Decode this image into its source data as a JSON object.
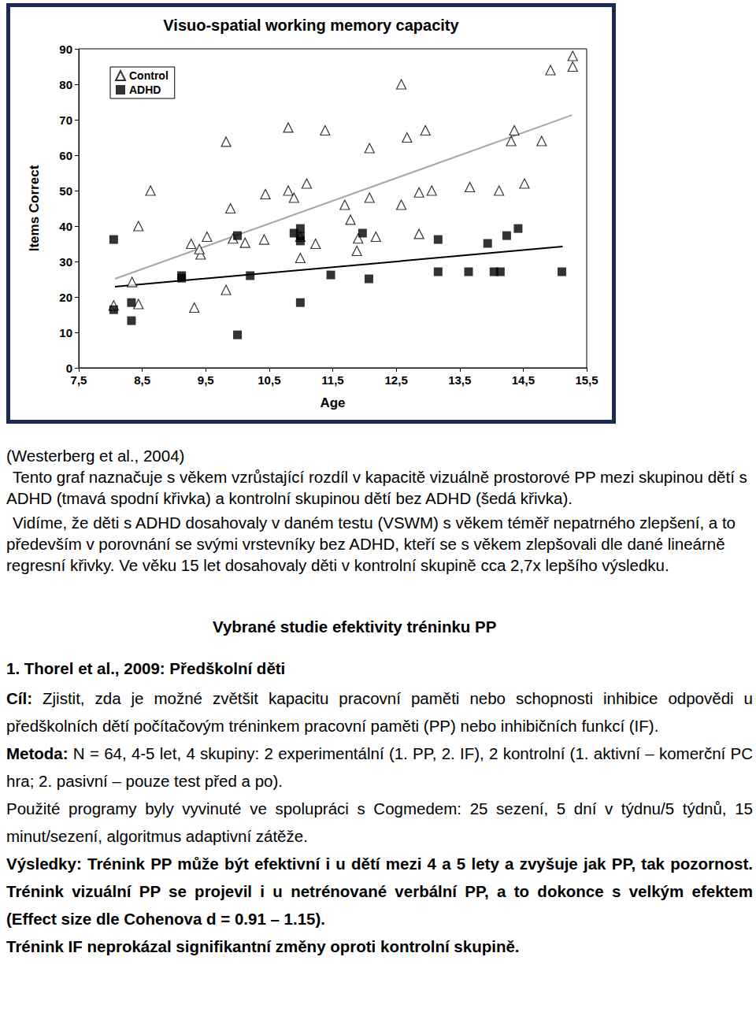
{
  "chart_data": {
    "type": "scatter",
    "title": "Visuo-spatial working memory capacity",
    "x_label": "Age",
    "y_label": "Items Correct",
    "xlim": [
      7.5,
      15.5
    ],
    "xticks": [
      {
        "value": 7.5,
        "label": "7,5"
      },
      {
        "value": 8.5,
        "label": "8,5"
      },
      {
        "value": 9.5,
        "label": "9,5"
      },
      {
        "value": 10.5,
        "label": "10,5"
      },
      {
        "value": 11.5,
        "label": "11,5"
      },
      {
        "value": 12.5,
        "label": "12,5"
      },
      {
        "value": 13.5,
        "label": "13,5"
      },
      {
        "value": 14.5,
        "label": "14,5"
      },
      {
        "value": 15.5,
        "label": "15,5"
      }
    ],
    "ylim": [
      0,
      90
    ],
    "yticks": [
      0,
      10,
      20,
      30,
      40,
      50,
      60,
      70,
      80,
      90
    ],
    "grid": false,
    "legend": "upper left",
    "series": [
      {
        "name": "Control",
        "color": "#000000",
        "marker": "hollow triangle",
        "x": [
          8.05,
          8.34,
          8.44,
          8.44,
          8.63,
          9.27,
          9.42,
          9.4,
          9.52,
          9.32,
          9.82,
          9.82,
          9.89,
          9.93,
          10.12,
          10.42,
          10.44,
          10.8,
          10.8,
          10.89,
          10.99,
          11.09,
          10.99,
          11.23,
          11.38,
          11.69,
          11.78,
          11.88,
          11.9,
          12.08,
          12.08,
          12.18,
          12.58,
          12.58,
          12.67,
          12.86,
          12.86,
          12.96,
          13.06,
          13.66,
          14.12,
          14.31,
          14.36,
          14.52,
          14.79,
          14.93,
          15.28,
          15.28
        ],
        "values": [
          17.6,
          24.2,
          40,
          18,
          50,
          35,
          32,
          33.5,
          37,
          17,
          63.8,
          22,
          45,
          36.5,
          35.3,
          36.2,
          49,
          67.8,
          50,
          48,
          31,
          52,
          37,
          35,
          67,
          46,
          41.8,
          33,
          36.5,
          62,
          48,
          37,
          80,
          46,
          65,
          37.8,
          49.5,
          67,
          50,
          51,
          50,
          64,
          67,
          52,
          64,
          84,
          85,
          88
        ],
        "trend": {
          "x": [
            8.07,
            15.27
          ],
          "values": [
            25.1,
            71.3
          ],
          "color": "#a6a6a6"
        }
      },
      {
        "name": "ADHD",
        "color": "#000000",
        "marker": "filled square",
        "x": [
          8.05,
          8.05,
          8.33,
          8.33,
          9.12,
          9.12,
          10,
          10,
          10.2,
          10.89,
          10.99,
          10.99,
          10.99,
          10.99,
          11.47,
          11.97,
          12.07,
          13.16,
          13.16,
          13.64,
          13.94,
          14.04,
          14.14,
          14.24,
          14.42,
          15.11
        ],
        "values": [
          36.2,
          16.4,
          18.4,
          13.3,
          26,
          25.3,
          9.3,
          37.3,
          26,
          38,
          39.3,
          37.1,
          35.8,
          18.4,
          26.2,
          38,
          25.1,
          36.2,
          27.1,
          27.1,
          35.1,
          27.1,
          27.1,
          37.3,
          39.3,
          27.1
        ],
        "trend": {
          "x": [
            8.07,
            15.12
          ],
          "values": [
            22.9,
            34.2
          ],
          "color": "#000000"
        }
      }
    ]
  },
  "document": {
    "citation": "(Westerberg et al., 2004)",
    "paragraphs": [
      "Tento graf naznačuje s věkem vzrůstající rozdíl v kapacitě vizuálně prostorové PP mezi skupinou dětí s ADHD (tmavá spodní křivka) a kontrolní skupinou dětí bez ADHD (šedá křivka).",
      "Vidíme, že děti s ADHD dosahovaly v daném testu (VSWM) s věkem téměř nepatrného zlepšení, a to především v porovnání se svými vrstevníky bez ADHD, kteří se s věkem zlepšovali dle dané lineárně regresní křivky. Ve věku 15 let dosahovaly děti v kontrolní skupině cca 2,7x lepšího výsledku."
    ],
    "heading": "Vybrané studie efektivity tréninku PP",
    "study_title": "1. Thorel et al., 2009: Předškolní děti",
    "sections": [
      {
        "label": "Cíl:",
        "text": "Zjistit, zda je možné zvětšit kapacitu pracovní paměti nebo schopnosti inhibice odpovědi u předškolních dětí počítačovým tréninkem pracovní paměti (PP) nebo inhibičních funkcí (IF).",
        "bold": false
      },
      {
        "label": "Metoda:",
        "text": "N = 64, 4-5 let, 4 skupiny: 2 experimentální (1. PP, 2. IF), 2 kontrolní (1. aktivní – komerční PC hra; 2. pasivní – pouze test před a po).",
        "bold": false
      },
      {
        "label": "",
        "text": "Použité programy byly vyvinuté ve spolupráci s Cogmedem: 25 sezení, 5 dní v týdnu/5 týdnů, 15 minut/sezení, algoritmus adaptivní zátěže.",
        "bold": false
      },
      {
        "label": "Výsledky:",
        "text": "Trénink PP může být efektivní i u dětí mezi 4 a 5 lety a zvyšuje jak PP, tak pozornost. Trénink vizuální PP se projevil i u netrénované verbální PP, a to dokonce s velkým efektem (Effect size dle Cohenova d = 0.91 – 1.15).",
        "bold": true
      },
      {
        "label": "",
        "text": "Trénink IF neprokázal signifikantní změny oproti kontrolní skupině.",
        "bold": true
      }
    ]
  }
}
